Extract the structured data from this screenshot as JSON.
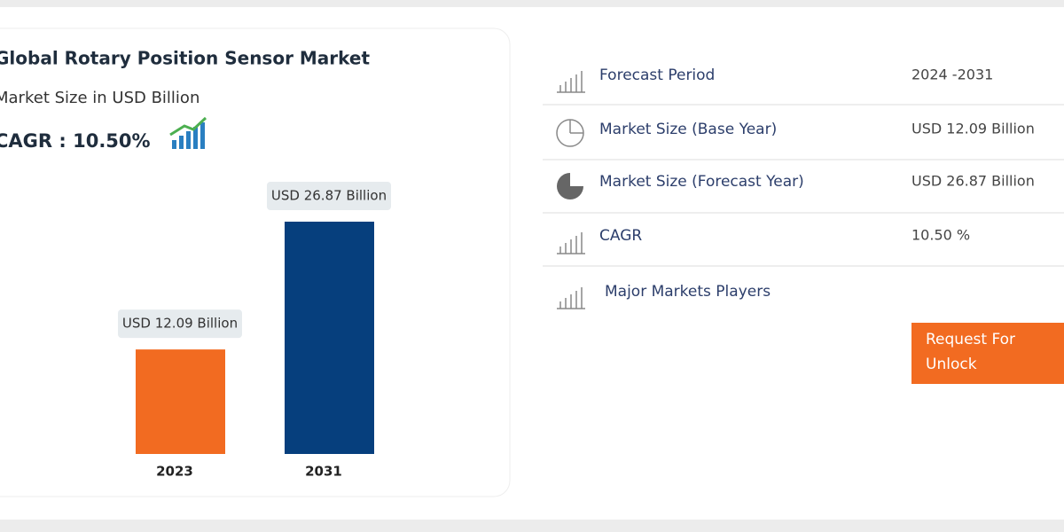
{
  "chart_data": {
    "type": "bar",
    "title": "Global Rotary Position Sensor Market",
    "subtitle": "Market Size in USD Billion",
    "annotation": "CAGR : 10.50%",
    "categories": [
      "2023",
      "2031"
    ],
    "values": [
      12.09,
      26.87
    ],
    "value_labels": [
      "USD 12.09 Billion",
      "USD 26.87 Billion"
    ],
    "colors": [
      "#f26b21",
      "#063f7d"
    ]
  },
  "table": {
    "rows": [
      [
        "Forecast Period",
        "2024 -2031"
      ],
      [
        "Market Size (Base Year)",
        "USD 12.09 Billion"
      ],
      [
        "Market Size (Forecast Year)",
        "USD 26.87 Billion"
      ],
      [
        "CAGR",
        "10.50 %"
      ],
      [
        "Major Markets Players"
      ]
    ]
  },
  "button": "Request For Unlock"
}
